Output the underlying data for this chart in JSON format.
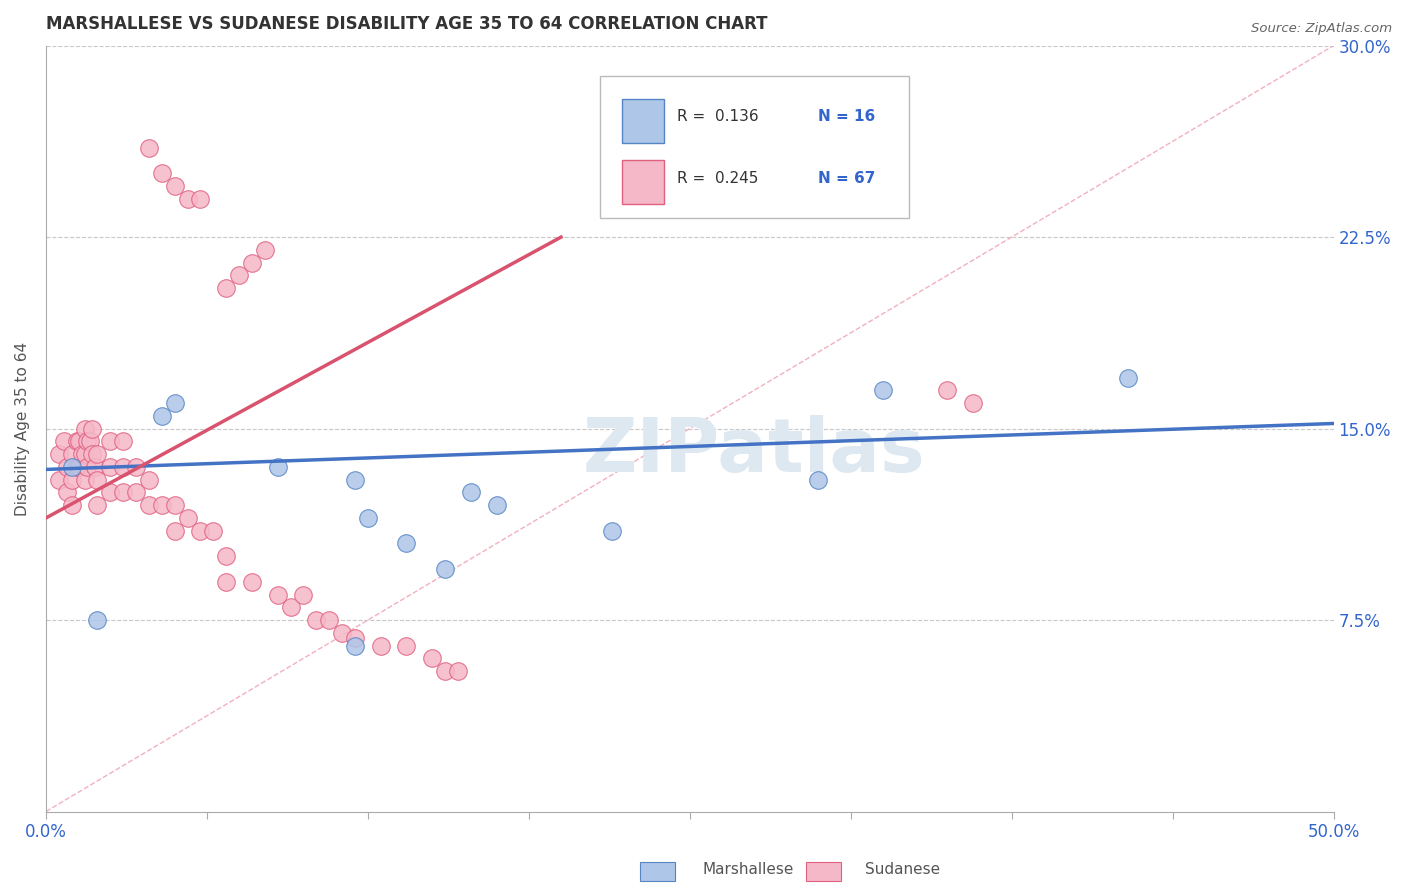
{
  "title": "MARSHALLESE VS SUDANESE DISABILITY AGE 35 TO 64 CORRELATION CHART",
  "source": "Source: ZipAtlas.com",
  "ylabel": "Disability Age 35 to 64",
  "xlim": [
    0.0,
    0.5
  ],
  "ylim": [
    0.0,
    0.3
  ],
  "xticks": [
    0.0,
    0.0625,
    0.125,
    0.1875,
    0.25,
    0.3125,
    0.375,
    0.4375,
    0.5
  ],
  "xtick_labels_show": [
    "0.0%",
    "",
    "",
    "",
    "",
    "",
    "",
    "",
    "50.0%"
  ],
  "yticks_right": [
    0.075,
    0.15,
    0.225,
    0.3
  ],
  "ytick_labels_right": [
    "7.5%",
    "15.0%",
    "22.5%",
    "30.0%"
  ],
  "grid_color": "#c8c8c8",
  "background_color": "#ffffff",
  "marshallese_fill": "#aec6e8",
  "marshallese_edge": "#5585c5",
  "sudanese_fill": "#f5b8c8",
  "sudanese_edge": "#e06080",
  "blue_line_color": "#4472c4",
  "pink_line_color": "#d9526e",
  "diag_line_color": "#f0a8b8",
  "legend_R1": "R =  0.136",
  "legend_N1": "N = 16",
  "legend_R2": "R =  0.245",
  "legend_N2": "N = 67",
  "watermark": "ZIPatlas",
  "blue_line_x": [
    0.0,
    0.5
  ],
  "blue_line_y": [
    0.134,
    0.152
  ],
  "pink_line_x": [
    0.0,
    0.2
  ],
  "pink_line_y": [
    0.115,
    0.225
  ],
  "diag_line_x": [
    0.0,
    0.5
  ],
  "diag_line_y": [
    0.0,
    0.3
  ],
  "marsh_x": [
    0.01,
    0.02,
    0.05,
    0.09,
    0.12,
    0.125,
    0.14,
    0.155,
    0.165,
    0.175,
    0.22,
    0.3,
    0.325,
    0.42,
    0.12,
    0.045
  ],
  "marsh_y": [
    0.135,
    0.075,
    0.16,
    0.135,
    0.13,
    0.115,
    0.105,
    0.095,
    0.125,
    0.12,
    0.11,
    0.13,
    0.165,
    0.17,
    0.065,
    0.155
  ],
  "sud_x": [
    0.005,
    0.005,
    0.007,
    0.008,
    0.008,
    0.01,
    0.01,
    0.01,
    0.012,
    0.012,
    0.013,
    0.013,
    0.014,
    0.015,
    0.015,
    0.015,
    0.016,
    0.016,
    0.017,
    0.018,
    0.018,
    0.019,
    0.02,
    0.02,
    0.02,
    0.025,
    0.025,
    0.025,
    0.03,
    0.03,
    0.03,
    0.035,
    0.035,
    0.04,
    0.04,
    0.045,
    0.05,
    0.05,
    0.055,
    0.06,
    0.065,
    0.07,
    0.07,
    0.08,
    0.09,
    0.095,
    0.1,
    0.105,
    0.11,
    0.115,
    0.12,
    0.13,
    0.14,
    0.15,
    0.155,
    0.16,
    0.07,
    0.075,
    0.08,
    0.085,
    0.35,
    0.36,
    0.04,
    0.045,
    0.05,
    0.055,
    0.06
  ],
  "sud_y": [
    0.14,
    0.13,
    0.145,
    0.135,
    0.125,
    0.14,
    0.13,
    0.12,
    0.145,
    0.135,
    0.145,
    0.135,
    0.14,
    0.15,
    0.14,
    0.13,
    0.145,
    0.135,
    0.145,
    0.15,
    0.14,
    0.135,
    0.14,
    0.13,
    0.12,
    0.145,
    0.135,
    0.125,
    0.145,
    0.135,
    0.125,
    0.135,
    0.125,
    0.13,
    0.12,
    0.12,
    0.12,
    0.11,
    0.115,
    0.11,
    0.11,
    0.1,
    0.09,
    0.09,
    0.085,
    0.08,
    0.085,
    0.075,
    0.075,
    0.07,
    0.068,
    0.065,
    0.065,
    0.06,
    0.055,
    0.055,
    0.205,
    0.21,
    0.215,
    0.22,
    0.165,
    0.16,
    0.26,
    0.25,
    0.245,
    0.24,
    0.24
  ]
}
